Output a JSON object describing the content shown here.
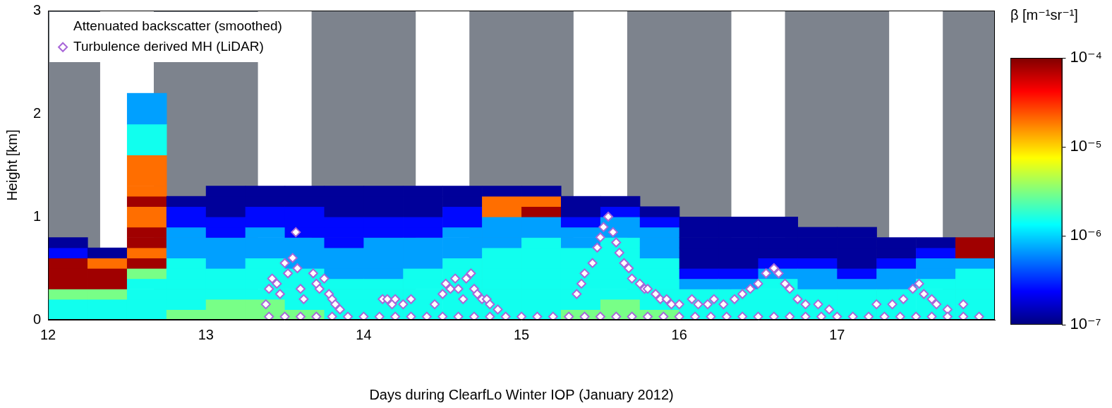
{
  "chart_data": {
    "type": "heatmap",
    "x_label": "Days during ClearfLo Winter IOP (January 2012)",
    "y_label": "Height [km]",
    "xlim": [
      12,
      18
    ],
    "xticks": [
      12,
      13,
      14,
      15,
      16,
      17
    ],
    "ylim": [
      0,
      3
    ],
    "yticks": [
      0,
      1,
      2,
      3
    ],
    "grid": false,
    "legend": "upper left",
    "heatmap_name": "Attenuated backscatter (smoothed)",
    "shaded_x_ranges": [
      [
        12,
        12.33
      ],
      [
        12.67,
        13.33
      ],
      [
        13.67,
        14.33
      ],
      [
        14.67,
        15.33
      ],
      [
        15.67,
        16.33
      ],
      [
        16.67,
        17.33
      ],
      [
        17.67,
        18
      ]
    ],
    "shade_color": "#7d838d",
    "cells": {
      "x_edges": [
        12,
        12.25,
        12.5,
        12.75,
        13,
        13.25,
        13.5,
        13.75,
        14,
        14.25,
        14.5,
        14.75,
        15,
        15.25,
        15.5,
        15.75,
        16,
        16.25,
        16.5,
        16.75,
        17,
        17.25,
        17.5,
        17.75,
        18
      ],
      "y_edges": [
        0,
        0.1,
        0.2,
        0.3,
        0.4,
        0.5,
        0.6,
        0.7,
        0.8,
        0.9,
        1.0,
        1.1,
        1.2,
        1.3,
        1.6,
        1.9,
        2.2
      ],
      "values_by_x": [
        [
          1.5e-06,
          1.5e-06,
          3e-06,
          8e-05,
          8e-05,
          8e-05,
          2.5e-07,
          1.2e-07,
          null,
          null,
          null,
          null,
          null,
          null,
          null,
          null
        ],
        [
          1.5e-06,
          1.5e-06,
          3e-06,
          8e-05,
          8e-05,
          2e-05,
          1.2e-07,
          null,
          null,
          null,
          null,
          null,
          null,
          null,
          null,
          null
        ],
        [
          1.5e-06,
          1.5e-06,
          1.5e-06,
          1.5e-06,
          3e-06,
          8e-05,
          2e-05,
          8e-05,
          8e-05,
          2e-05,
          2e-05,
          8e-05,
          2e-05,
          2e-05,
          1.5e-06,
          7e-07
        ],
        [
          3e-06,
          1.5e-06,
          1.5e-06,
          1.5e-06,
          1.5e-06,
          1.5e-06,
          7e-07,
          7e-07,
          7e-07,
          2.5e-07,
          2.5e-07,
          1.2e-07,
          null,
          null,
          null,
          null
        ],
        [
          3e-06,
          3e-06,
          1.5e-06,
          1.5e-06,
          1.5e-06,
          7e-07,
          7e-07,
          7e-07,
          2.5e-07,
          2.5e-07,
          1.2e-07,
          1.2e-07,
          1.2e-07,
          null,
          null,
          null
        ],
        [
          3e-06,
          3e-06,
          1.5e-06,
          1.5e-06,
          1.5e-06,
          1.5e-06,
          7e-07,
          7e-07,
          7e-07,
          2.5e-07,
          2.5e-07,
          1.2e-07,
          1.2e-07,
          null,
          null,
          null
        ],
        [
          3e-06,
          1.5e-06,
          1.5e-06,
          1.5e-06,
          1.5e-06,
          7e-07,
          7e-07,
          7e-07,
          2.5e-07,
          2.5e-07,
          2.5e-07,
          1.2e-07,
          1.2e-07,
          null,
          null,
          null
        ],
        [
          1.5e-06,
          1.5e-06,
          1.5e-06,
          1.5e-06,
          7e-07,
          7e-07,
          7e-07,
          2.5e-07,
          2.5e-07,
          2.5e-07,
          1.2e-07,
          1.2e-07,
          1.2e-07,
          null,
          null,
          null
        ],
        [
          1.5e-06,
          1.5e-06,
          1.5e-06,
          1.5e-06,
          7e-07,
          7e-07,
          7e-07,
          7e-07,
          2.5e-07,
          2.5e-07,
          1.2e-07,
          1.2e-07,
          1.2e-07,
          null,
          null,
          null
        ],
        [
          1.5e-06,
          1.5e-06,
          1.5e-06,
          1.5e-06,
          1.5e-06,
          7e-07,
          7e-07,
          7e-07,
          2.5e-07,
          2.5e-07,
          1.2e-07,
          1.2e-07,
          1.2e-07,
          null,
          null,
          null
        ],
        [
          1.5e-06,
          1.5e-06,
          1.5e-06,
          1.5e-06,
          1.5e-06,
          1.5e-06,
          7e-07,
          7e-07,
          7e-07,
          2.5e-07,
          2.5e-07,
          1.2e-07,
          1.2e-07,
          null,
          null,
          null
        ],
        [
          1.5e-06,
          1.5e-06,
          1.5e-06,
          1.5e-06,
          1.5e-06,
          1.5e-06,
          1.5e-06,
          7e-07,
          7e-07,
          7e-07,
          2e-05,
          2e-05,
          1.2e-07,
          null,
          null,
          null
        ],
        [
          1.5e-06,
          1.5e-06,
          1.5e-06,
          1.5e-06,
          1.5e-06,
          1.5e-06,
          1.5e-06,
          1.5e-06,
          7e-07,
          7e-07,
          8e-05,
          2e-05,
          1.2e-07,
          null,
          null,
          null
        ],
        [
          3e-06,
          1.5e-06,
          1.5e-06,
          1.5e-06,
          1.5e-06,
          1.5e-06,
          1.5e-06,
          7e-07,
          7e-07,
          2.5e-07,
          1.2e-07,
          1.2e-07,
          null,
          null,
          null,
          null
        ],
        [
          3e-06,
          3e-06,
          1.5e-06,
          1.5e-06,
          1.5e-06,
          1.5e-06,
          1.5e-06,
          1.5e-06,
          7e-07,
          7e-07,
          2.5e-07,
          1.2e-07,
          null,
          null,
          null,
          null
        ],
        [
          3e-06,
          1.5e-06,
          1.5e-06,
          1.5e-06,
          1.5e-06,
          1.5e-06,
          7e-07,
          7e-07,
          7e-07,
          2.5e-07,
          1.2e-07,
          null,
          null,
          null,
          null,
          null
        ],
        [
          1.5e-06,
          1.5e-06,
          1.5e-06,
          7e-07,
          2.5e-07,
          1.2e-07,
          1.2e-07,
          1.2e-07,
          1.2e-07,
          1.2e-07,
          null,
          null,
          null,
          null,
          null,
          null
        ],
        [
          1.5e-06,
          1.5e-06,
          1.5e-06,
          7e-07,
          2.5e-07,
          1.2e-07,
          1.2e-07,
          1.2e-07,
          1.2e-07,
          1.2e-07,
          null,
          null,
          null,
          null,
          null,
          null
        ],
        [
          1.5e-06,
          1.5e-06,
          1.5e-06,
          1.5e-06,
          7e-07,
          2.5e-07,
          1.2e-07,
          1.2e-07,
          1.2e-07,
          1.2e-07,
          null,
          null,
          null,
          null,
          null,
          null
        ],
        [
          1.5e-06,
          1.5e-06,
          1.5e-06,
          7e-07,
          7e-07,
          2.5e-07,
          1.2e-07,
          1.2e-07,
          1.2e-07,
          null,
          null,
          null,
          null,
          null,
          null,
          null
        ],
        [
          1.5e-06,
          1.5e-06,
          1.5e-06,
          7e-07,
          2.5e-07,
          1.2e-07,
          1.2e-07,
          1.2e-07,
          1.2e-07,
          null,
          null,
          null,
          null,
          null,
          null,
          null
        ],
        [
          1.5e-06,
          1.5e-06,
          1.5e-06,
          7e-07,
          7e-07,
          2.5e-07,
          1.2e-07,
          1.2e-07,
          null,
          null,
          null,
          null,
          null,
          null,
          null,
          null
        ],
        [
          1.5e-06,
          1.5e-06,
          1.5e-06,
          1.5e-06,
          7e-07,
          7e-07,
          2.5e-07,
          1.2e-07,
          null,
          null,
          null,
          null,
          null,
          null,
          null,
          null
        ],
        [
          1.5e-06,
          1.5e-06,
          1.5e-06,
          1.5e-06,
          1.5e-06,
          7e-07,
          8e-05,
          8e-05,
          null,
          null,
          null,
          null,
          null,
          null,
          null,
          null
        ]
      ]
    },
    "colorbar": {
      "label": "β [m⁻¹sr⁻¹]",
      "log": true,
      "range": [
        1e-07,
        0.0001
      ],
      "ticks": [
        {
          "value": 1e-07,
          "label": "10⁻⁷"
        },
        {
          "value": 1e-06,
          "label": "10⁻⁶"
        },
        {
          "value": 1e-05,
          "label": "10⁻⁵"
        },
        {
          "value": 0.0001,
          "label": "10⁻⁴"
        }
      ]
    },
    "series": [
      {
        "name": "Turbulence derived MH (LiDAR)",
        "type": "scatter",
        "marker": "diamond",
        "color": "#a866d8",
        "points": [
          [
            13.38,
            0.15
          ],
          [
            13.4,
            0.3
          ],
          [
            13.42,
            0.4
          ],
          [
            13.45,
            0.35
          ],
          [
            13.47,
            0.25
          ],
          [
            13.5,
            0.55
          ],
          [
            13.52,
            0.45
          ],
          [
            13.55,
            0.6
          ],
          [
            13.57,
            0.85
          ],
          [
            13.58,
            0.5
          ],
          [
            13.6,
            0.3
          ],
          [
            13.62,
            0.2
          ],
          [
            13.68,
            0.45
          ],
          [
            13.7,
            0.35
          ],
          [
            13.72,
            0.3
          ],
          [
            13.75,
            0.4
          ],
          [
            13.78,
            0.25
          ],
          [
            13.8,
            0.2
          ],
          [
            13.82,
            0.15
          ],
          [
            13.85,
            0.1
          ],
          [
            14.12,
            0.2
          ],
          [
            14.15,
            0.2
          ],
          [
            14.18,
            0.15
          ],
          [
            14.2,
            0.2
          ],
          [
            14.25,
            0.15
          ],
          [
            14.3,
            0.2
          ],
          [
            14.45,
            0.15
          ],
          [
            14.5,
            0.25
          ],
          [
            14.52,
            0.35
          ],
          [
            14.55,
            0.3
          ],
          [
            14.58,
            0.4
          ],
          [
            14.6,
            0.3
          ],
          [
            14.63,
            0.2
          ],
          [
            14.65,
            0.4
          ],
          [
            14.68,
            0.45
          ],
          [
            14.7,
            0.3
          ],
          [
            14.72,
            0.25
          ],
          [
            14.75,
            0.2
          ],
          [
            14.78,
            0.2
          ],
          [
            14.8,
            0.15
          ],
          [
            14.85,
            0.1
          ],
          [
            15.35,
            0.25
          ],
          [
            15.38,
            0.35
          ],
          [
            15.4,
            0.45
          ],
          [
            15.45,
            0.55
          ],
          [
            15.48,
            0.7
          ],
          [
            15.5,
            0.8
          ],
          [
            15.52,
            0.9
          ],
          [
            15.55,
            1.0
          ],
          [
            15.58,
            0.85
          ],
          [
            15.6,
            0.75
          ],
          [
            15.62,
            0.65
          ],
          [
            15.65,
            0.55
          ],
          [
            15.68,
            0.5
          ],
          [
            15.7,
            0.4
          ],
          [
            15.75,
            0.35
          ],
          [
            15.78,
            0.3
          ],
          [
            15.8,
            0.3
          ],
          [
            15.85,
            0.25
          ],
          [
            15.88,
            0.2
          ],
          [
            15.92,
            0.2
          ],
          [
            15.95,
            0.15
          ],
          [
            16.0,
            0.15
          ],
          [
            16.08,
            0.2
          ],
          [
            16.12,
            0.15
          ],
          [
            16.18,
            0.15
          ],
          [
            16.22,
            0.2
          ],
          [
            16.28,
            0.15
          ],
          [
            16.35,
            0.2
          ],
          [
            16.4,
            0.25
          ],
          [
            16.45,
            0.3
          ],
          [
            16.5,
            0.35
          ],
          [
            16.55,
            0.45
          ],
          [
            16.6,
            0.5
          ],
          [
            16.63,
            0.45
          ],
          [
            16.67,
            0.35
          ],
          [
            16.7,
            0.3
          ],
          [
            16.75,
            0.2
          ],
          [
            16.8,
            0.15
          ],
          [
            16.88,
            0.15
          ],
          [
            16.95,
            0.1
          ],
          [
            17.25,
            0.15
          ],
          [
            17.35,
            0.15
          ],
          [
            17.42,
            0.2
          ],
          [
            17.48,
            0.3
          ],
          [
            17.52,
            0.35
          ],
          [
            17.55,
            0.25
          ],
          [
            17.6,
            0.2
          ],
          [
            17.63,
            0.15
          ],
          [
            17.7,
            0.1
          ],
          [
            17.8,
            0.15
          ],
          [
            13.4,
            0.03
          ],
          [
            13.5,
            0.03
          ],
          [
            13.6,
            0.03
          ],
          [
            13.7,
            0.03
          ],
          [
            13.8,
            0.03
          ],
          [
            13.9,
            0.03
          ],
          [
            14.0,
            0.03
          ],
          [
            14.1,
            0.03
          ],
          [
            14.2,
            0.03
          ],
          [
            14.3,
            0.03
          ],
          [
            14.4,
            0.03
          ],
          [
            14.5,
            0.03
          ],
          [
            14.6,
            0.03
          ],
          [
            14.7,
            0.03
          ],
          [
            14.8,
            0.03
          ],
          [
            14.9,
            0.03
          ],
          [
            15.0,
            0.03
          ],
          [
            15.1,
            0.03
          ],
          [
            15.2,
            0.03
          ],
          [
            15.3,
            0.03
          ],
          [
            15.4,
            0.03
          ],
          [
            15.5,
            0.03
          ],
          [
            15.6,
            0.03
          ],
          [
            15.7,
            0.03
          ],
          [
            15.8,
            0.03
          ],
          [
            15.9,
            0.03
          ],
          [
            16.0,
            0.03
          ],
          [
            16.1,
            0.03
          ],
          [
            16.2,
            0.03
          ],
          [
            16.3,
            0.03
          ],
          [
            16.4,
            0.03
          ],
          [
            16.5,
            0.03
          ],
          [
            16.6,
            0.03
          ],
          [
            16.7,
            0.03
          ],
          [
            16.8,
            0.03
          ],
          [
            16.9,
            0.03
          ],
          [
            17.0,
            0.03
          ],
          [
            17.1,
            0.03
          ],
          [
            17.2,
            0.03
          ],
          [
            17.3,
            0.03
          ],
          [
            17.4,
            0.03
          ],
          [
            17.5,
            0.03
          ],
          [
            17.6,
            0.03
          ],
          [
            17.7,
            0.03
          ],
          [
            17.8,
            0.03
          ],
          [
            17.9,
            0.03
          ]
        ]
      }
    ]
  }
}
